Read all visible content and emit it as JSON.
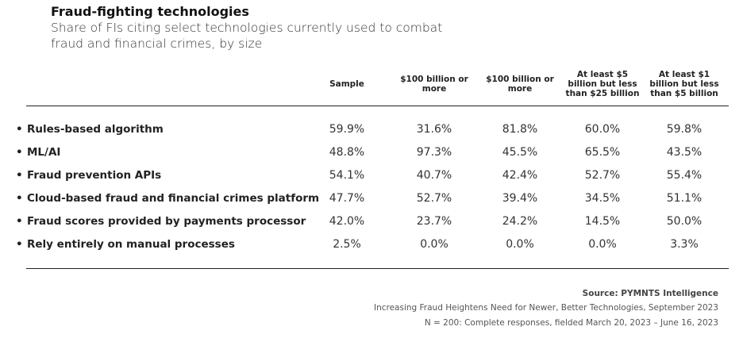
{
  "header": {
    "title": "Fraud-fighting technologies",
    "subtitle": "Share of FIs citing select technologies currently used to combat fraud and financial crimes, by size"
  },
  "table": {
    "columns": [
      "Sample",
      "$100 billion or more",
      "$100 billion or more",
      "At least $5 billion but less than $25 billion",
      "At least $1 billion but less than $5 billion"
    ],
    "rows": [
      {
        "label": "Rules-based algorithm",
        "cells": [
          "59.9%",
          "31.6%",
          "81.8%",
          "60.0%",
          "59.8%"
        ]
      },
      {
        "label": "ML/AI",
        "cells": [
          "48.8%",
          "97.3%",
          "45.5%",
          "65.5%",
          "43.5%"
        ]
      },
      {
        "label": "Fraud prevention APIs",
        "cells": [
          "54.1%",
          "40.7%",
          "42.4%",
          "52.7%",
          "55.4%"
        ]
      },
      {
        "label": "Cloud-based fraud and financial crimes platform",
        "cells": [
          "47.7%",
          "52.7%",
          "39.4%",
          "34.5%",
          "51.1%"
        ]
      },
      {
        "label": "Fraud scores provided by payments processor",
        "cells": [
          "42.0%",
          "23.7%",
          "24.2%",
          "14.5%",
          "50.0%"
        ]
      },
      {
        "label": "Rely entirely on manual processes",
        "cells": [
          "2.5%",
          "0.0%",
          "0.0%",
          "0.0%",
          "3.3%"
        ]
      }
    ]
  },
  "footer": {
    "source": "Source: PYMNTS Intelligence",
    "report": "Increasing Fraud Heightens Need for Newer, Better Technologies, September 2023",
    "sample": "N = 200: Complete responses, fielded March 20, 2023 – June 16, 2023"
  }
}
